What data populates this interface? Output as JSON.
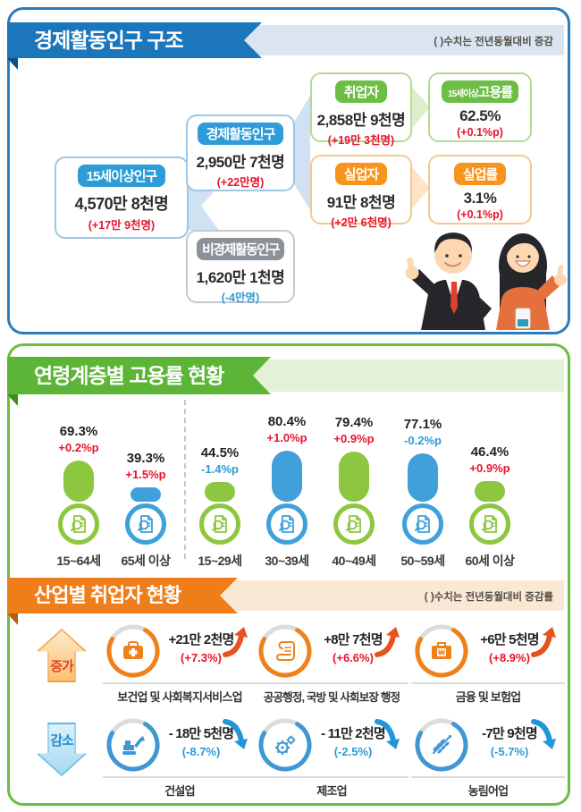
{
  "section1": {
    "title": "경제활동인구 구조",
    "note": "( )수치는 전년동월대비 증감",
    "colors": {
      "ribbon": "#1b76bc",
      "band": "#dbe5f1",
      "fold": "#0d4f87",
      "border": "#2a7cbd"
    },
    "boxes": {
      "pop15": {
        "label": "15세이상인구",
        "value": "4,570만 8천명",
        "change": "(+17만 9천명)",
        "change_color": "#e8132c",
        "label_bg": "#2e9cd6"
      },
      "active": {
        "label": "경제활동인구",
        "value": "2,950만 7천명",
        "change": "(+22만명)",
        "change_color": "#e8132c",
        "label_bg": "#2e9cd6"
      },
      "inactive": {
        "label": "비경제활동인구",
        "value": "1,620만 1천명",
        "change": "(-4만명)",
        "change_color": "#2d9ad5",
        "label_bg": "#8a9199"
      },
      "employed": {
        "label": "취업자",
        "value": "2,858만 9천명",
        "change": "(+19만 3천명)",
        "change_color": "#e8132c",
        "label_bg": "#6cbe45"
      },
      "emp_rate": {
        "label_prefix": "15세이상",
        "label": "고용률",
        "value": "62.5%",
        "change": "(+0.1%p)",
        "change_color": "#e8132c",
        "label_bg": "#6cbe45"
      },
      "unemployed": {
        "label": "실업자",
        "value": "91만 8천명",
        "change": "(+2만 6천명)",
        "change_color": "#e8132c",
        "label_bg": "#f7941e"
      },
      "unemp_rate": {
        "label": "실업률",
        "value": "3.1%",
        "change": "(+0.1%p)",
        "change_color": "#e8132c",
        "label_bg": "#f7941e"
      }
    }
  },
  "section2": {
    "title": "연령계층별 고용률 현황",
    "colors": {
      "ribbon": "#5cb537",
      "band": "#e4f1d9",
      "fold": "#3e8c1e",
      "border": "#6abf40"
    }
  },
  "chart_data": {
    "type": "bar",
    "title": "연령계층별 고용률 현황",
    "unit": "%",
    "categories": [
      "15~64세",
      "65세 이상",
      "15~29세",
      "30~39세",
      "40~49세",
      "50~59세",
      "60세 이상"
    ],
    "values": [
      69.3,
      39.3,
      44.5,
      80.4,
      79.4,
      77.1,
      46.4
    ],
    "value_labels": [
      "69.3%",
      "39.3%",
      "44.5%",
      "80.4%",
      "79.4%",
      "77.1%",
      "46.4%"
    ],
    "changes": [
      "+0.2%p",
      "+1.5%p",
      "-1.4%p",
      "+1.0%p",
      "+0.9%p",
      "-0.2%p",
      "+0.9%p"
    ],
    "change_colors": [
      "#e8132c",
      "#e8132c",
      "#2d9ad5",
      "#e8132c",
      "#e8132c",
      "#2d9ad5",
      "#e8132c"
    ],
    "bar_colors": [
      "#8dc63f",
      "#3fa0da",
      "#8dc63f",
      "#3fa0da",
      "#8dc63f",
      "#3fa0da",
      "#8dc63f"
    ],
    "group_divider_after": "65세 이상",
    "ylim": [
      0,
      100
    ],
    "legend": null
  },
  "section3": {
    "title": "산업별 취업자 현황",
    "note": "( )수치는 전년동월대비 증감률",
    "colors": {
      "ribbon": "#ef7d1a",
      "band": "#fbe8d4",
      "fold": "#b85c10",
      "accent_up": "#f08019",
      "accent_down": "#3f97d3"
    },
    "increase_label": "증가",
    "decrease_label": "감소",
    "increase": [
      {
        "industry": "보건업 및 사회복지서비스업",
        "value": "+21만 2천명",
        "rate": "(+7.3%)",
        "icon": "medical-bag-icon"
      },
      {
        "industry": "공공행정, 국방 및 사회보장 행정",
        "value": "+8만 7천명",
        "rate": "(+6.6%)",
        "icon": "scroll-icon"
      },
      {
        "industry": "금융 및 보험업",
        "value": "+6만 5천명",
        "rate": "(+8.9%)",
        "icon": "won-briefcase-icon"
      }
    ],
    "decrease": [
      {
        "industry": "건설업",
        "value": "- 18만 5천명",
        "rate": "(-8.7%)",
        "icon": "excavator-icon"
      },
      {
        "industry": "제조업",
        "value": "- 11만 2천명",
        "rate": "(-2.5%)",
        "icon": "gears-icon"
      },
      {
        "industry": "농림어업",
        "value": "-7만 9천명",
        "rate": "(-5.7%)",
        "icon": "wheat-icon"
      }
    ]
  }
}
